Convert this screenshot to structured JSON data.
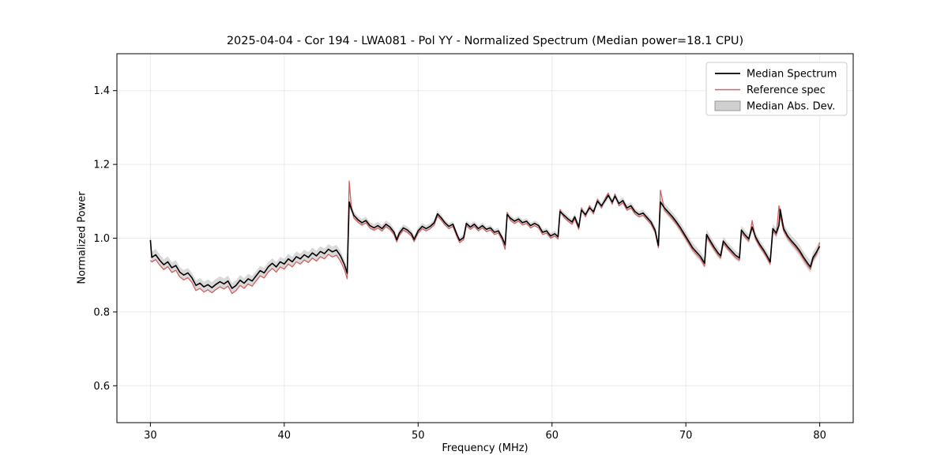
{
  "chart_data": {
    "type": "line",
    "title": "2025-04-04 - Cor 194 - LWA081 - Pol YY - Normalized Spectrum (Median power=18.1 CPU)",
    "xlabel": "Frequency (MHz)",
    "ylabel": "Normalized Power",
    "xlim": [
      27.5,
      82.5
    ],
    "ylim": [
      0.5,
      1.5
    ],
    "xticks": [
      30,
      40,
      50,
      60,
      70,
      80
    ],
    "xtick_labels": [
      "30",
      "40",
      "50",
      "60",
      "70",
      "80"
    ],
    "yticks": [
      0.6,
      0.8,
      1.0,
      1.2,
      1.4
    ],
    "ytick_labels": [
      "0.6",
      "0.8",
      "1.0",
      "1.2",
      "1.4"
    ],
    "grid": true,
    "grid_color": "rgba(0,0,0,0.08)",
    "spine_color": "#000000",
    "legend": {
      "position": "upper right"
    },
    "series": [
      {
        "name": "Median Spectrum",
        "color": "#000000",
        "width": 1.6,
        "kind": "line"
      },
      {
        "name": "Reference spec",
        "color": "#d65f5f",
        "width": 1.3,
        "kind": "line"
      },
      {
        "name": "Median Abs. Dev.",
        "color": "#aaaaaa",
        "opacity": 0.45,
        "kind": "band"
      }
    ],
    "points_format": [
      "frequency_mhz",
      "median_power",
      "reference_power"
    ],
    "points": [
      [
        30.0,
        0.995,
        0.94
      ],
      [
        30.1,
        0.948,
        0.936
      ],
      [
        30.4,
        0.955,
        0.942
      ],
      [
        30.7,
        0.94,
        0.927
      ],
      [
        31.0,
        0.928,
        0.915
      ],
      [
        31.3,
        0.936,
        0.923
      ],
      [
        31.6,
        0.92,
        0.907
      ],
      [
        31.9,
        0.926,
        0.913
      ],
      [
        32.2,
        0.908,
        0.895
      ],
      [
        32.5,
        0.9,
        0.887
      ],
      [
        32.8,
        0.906,
        0.893
      ],
      [
        33.1,
        0.893,
        0.88
      ],
      [
        33.4,
        0.872,
        0.858
      ],
      [
        33.7,
        0.878,
        0.864
      ],
      [
        34.0,
        0.868,
        0.854
      ],
      [
        34.3,
        0.874,
        0.86
      ],
      [
        34.6,
        0.866,
        0.852
      ],
      [
        34.9,
        0.875,
        0.861
      ],
      [
        35.2,
        0.882,
        0.868
      ],
      [
        35.5,
        0.876,
        0.862
      ],
      [
        35.8,
        0.884,
        0.87
      ],
      [
        36.1,
        0.864,
        0.85
      ],
      [
        36.4,
        0.872,
        0.858
      ],
      [
        36.7,
        0.886,
        0.872
      ],
      [
        37.0,
        0.878,
        0.864
      ],
      [
        37.3,
        0.89,
        0.876
      ],
      [
        37.6,
        0.884,
        0.87
      ],
      [
        37.9,
        0.898,
        0.884
      ],
      [
        38.2,
        0.912,
        0.898
      ],
      [
        38.5,
        0.906,
        0.892
      ],
      [
        38.8,
        0.922,
        0.908
      ],
      [
        39.1,
        0.932,
        0.918
      ],
      [
        39.4,
        0.922,
        0.908
      ],
      [
        39.7,
        0.936,
        0.922
      ],
      [
        40.0,
        0.93,
        0.916
      ],
      [
        40.3,
        0.944,
        0.93
      ],
      [
        40.6,
        0.936,
        0.922
      ],
      [
        40.9,
        0.95,
        0.936
      ],
      [
        41.2,
        0.944,
        0.93
      ],
      [
        41.5,
        0.955,
        0.941
      ],
      [
        41.8,
        0.948,
        0.934
      ],
      [
        42.1,
        0.96,
        0.946
      ],
      [
        42.4,
        0.952,
        0.938
      ],
      [
        42.7,
        0.964,
        0.95
      ],
      [
        43.0,
        0.958,
        0.944
      ],
      [
        43.3,
        0.97,
        0.956
      ],
      [
        43.6,
        0.963,
        0.949
      ],
      [
        43.9,
        0.968,
        0.954
      ],
      [
        44.2,
        0.952,
        0.938
      ],
      [
        44.5,
        0.928,
        0.914
      ],
      [
        44.7,
        0.905,
        0.89
      ],
      [
        44.85,
        1.098,
        1.155
      ],
      [
        45.0,
        1.08,
        1.09
      ],
      [
        45.2,
        1.062,
        1.055
      ],
      [
        45.5,
        1.05,
        1.044
      ],
      [
        45.8,
        1.042,
        1.036
      ],
      [
        46.1,
        1.048,
        1.042
      ],
      [
        46.4,
        1.034,
        1.028
      ],
      [
        46.7,
        1.028,
        1.022
      ],
      [
        47.0,
        1.034,
        1.028
      ],
      [
        47.3,
        1.026,
        1.02
      ],
      [
        47.6,
        1.038,
        1.032
      ],
      [
        47.9,
        1.03,
        1.024
      ],
      [
        48.2,
        1.016,
        1.01
      ],
      [
        48.4,
        0.996,
        0.99
      ],
      [
        48.6,
        1.014,
        1.008
      ],
      [
        48.9,
        1.028,
        1.022
      ],
      [
        49.2,
        1.022,
        1.016
      ],
      [
        49.5,
        1.012,
        1.006
      ],
      [
        49.7,
        0.997,
        0.991
      ],
      [
        50.0,
        1.02,
        1.014
      ],
      [
        50.3,
        1.032,
        1.026
      ],
      [
        50.6,
        1.026,
        1.02
      ],
      [
        50.9,
        1.032,
        1.026
      ],
      [
        51.2,
        1.042,
        1.036
      ],
      [
        51.45,
        1.066,
        1.06
      ],
      [
        51.7,
        1.056,
        1.05
      ],
      [
        52.0,
        1.042,
        1.036
      ],
      [
        52.3,
        1.032,
        1.026
      ],
      [
        52.6,
        1.038,
        1.032
      ],
      [
        52.9,
        1.01,
        1.004
      ],
      [
        53.1,
        0.994,
        0.988
      ],
      [
        53.4,
        1.002,
        0.996
      ],
      [
        53.6,
        1.04,
        1.034
      ],
      [
        53.9,
        1.03,
        1.024
      ],
      [
        54.2,
        1.038,
        1.032
      ],
      [
        54.5,
        1.026,
        1.02
      ],
      [
        54.8,
        1.034,
        1.028
      ],
      [
        55.1,
        1.024,
        1.018
      ],
      [
        55.4,
        1.028,
        1.022
      ],
      [
        55.7,
        1.016,
        1.01
      ],
      [
        56.0,
        1.02,
        1.014
      ],
      [
        56.3,
        1.0,
        0.992
      ],
      [
        56.5,
        0.982,
        0.97
      ],
      [
        56.65,
        1.064,
        1.07
      ],
      [
        56.9,
        1.054,
        1.048
      ],
      [
        57.2,
        1.046,
        1.04
      ],
      [
        57.5,
        1.052,
        1.046
      ],
      [
        57.8,
        1.042,
        1.036
      ],
      [
        58.1,
        1.046,
        1.04
      ],
      [
        58.4,
        1.034,
        1.028
      ],
      [
        58.7,
        1.04,
        1.034
      ],
      [
        59.0,
        1.034,
        1.028
      ],
      [
        59.3,
        1.016,
        1.01
      ],
      [
        59.6,
        1.02,
        1.014
      ],
      [
        59.9,
        1.006,
        1.0
      ],
      [
        60.2,
        1.012,
        1.006
      ],
      [
        60.45,
        1.004,
        0.998
      ],
      [
        60.6,
        1.072,
        1.078
      ],
      [
        60.9,
        1.062,
        1.056
      ],
      [
        61.2,
        1.052,
        1.046
      ],
      [
        61.5,
        1.044,
        1.038
      ],
      [
        61.7,
        1.058,
        1.052
      ],
      [
        62.0,
        1.03,
        1.024
      ],
      [
        62.2,
        1.076,
        1.082
      ],
      [
        62.5,
        1.064,
        1.058
      ],
      [
        62.8,
        1.082,
        1.088
      ],
      [
        63.1,
        1.072,
        1.066
      ],
      [
        63.4,
        1.1,
        1.106
      ],
      [
        63.7,
        1.088,
        1.082
      ],
      [
        64.0,
        1.104,
        1.11
      ],
      [
        64.2,
        1.116,
        1.122
      ],
      [
        64.5,
        1.098,
        1.092
      ],
      [
        64.7,
        1.114,
        1.12
      ],
      [
        65.0,
        1.094,
        1.088
      ],
      [
        65.3,
        1.102,
        1.096
      ],
      [
        65.6,
        1.082,
        1.076
      ],
      [
        65.9,
        1.088,
        1.082
      ],
      [
        66.2,
        1.072,
        1.066
      ],
      [
        66.5,
        1.064,
        1.058
      ],
      [
        66.8,
        1.068,
        1.062
      ],
      [
        67.1,
        1.056,
        1.05
      ],
      [
        67.4,
        1.044,
        1.038
      ],
      [
        67.7,
        1.022,
        1.016
      ],
      [
        67.95,
        0.98,
        0.974
      ],
      [
        68.1,
        1.098,
        1.13
      ],
      [
        68.4,
        1.082,
        1.076
      ],
      [
        68.7,
        1.07,
        1.064
      ],
      [
        69.0,
        1.058,
        1.052
      ],
      [
        69.3,
        1.044,
        1.038
      ],
      [
        69.6,
        1.028,
        1.022
      ],
      [
        69.9,
        1.01,
        1.004
      ],
      [
        70.2,
        0.992,
        0.986
      ],
      [
        70.5,
        0.974,
        0.968
      ],
      [
        70.8,
        0.962,
        0.956
      ],
      [
        71.1,
        0.95,
        0.944
      ],
      [
        71.4,
        0.932,
        0.924
      ],
      [
        71.55,
        1.01,
        1.004
      ],
      [
        71.8,
        0.994,
        0.988
      ],
      [
        72.1,
        0.976,
        0.97
      ],
      [
        72.4,
        0.96,
        0.954
      ],
      [
        72.6,
        0.952,
        0.946
      ],
      [
        72.8,
        0.992,
        0.986
      ],
      [
        73.1,
        0.978,
        0.972
      ],
      [
        73.4,
        0.966,
        0.96
      ],
      [
        73.7,
        0.954,
        0.948
      ],
      [
        74.0,
        0.946,
        0.94
      ],
      [
        74.15,
        1.022,
        1.016
      ],
      [
        74.4,
        1.01,
        1.004
      ],
      [
        74.7,
        0.998,
        0.992
      ],
      [
        74.95,
        1.03,
        1.048
      ],
      [
        75.2,
        1.004,
        0.998
      ],
      [
        75.5,
        0.984,
        0.978
      ],
      [
        75.8,
        0.968,
        0.962
      ],
      [
        76.1,
        0.95,
        0.944
      ],
      [
        76.3,
        0.936,
        0.93
      ],
      [
        76.5,
        1.026,
        1.02
      ],
      [
        76.75,
        1.014,
        1.008
      ],
      [
        76.95,
        1.034,
        1.088
      ],
      [
        77.05,
        1.078,
        1.06
      ],
      [
        77.3,
        1.026,
        1.02
      ],
      [
        77.6,
        1.006,
        1.0
      ],
      [
        77.9,
        0.992,
        0.986
      ],
      [
        78.2,
        0.98,
        0.974
      ],
      [
        78.5,
        0.966,
        0.96
      ],
      [
        78.8,
        0.948,
        0.942
      ],
      [
        79.1,
        0.932,
        0.926
      ],
      [
        79.3,
        0.922,
        0.916
      ],
      [
        79.5,
        0.948,
        0.942
      ],
      [
        79.75,
        0.962,
        0.956
      ],
      [
        80.0,
        0.978,
        0.988
      ]
    ],
    "mad_halfwidth_control": [
      [
        30,
        0.016
      ],
      [
        33,
        0.013
      ],
      [
        35,
        0.015
      ],
      [
        38,
        0.013
      ],
      [
        41,
        0.014
      ],
      [
        44,
        0.014
      ],
      [
        45.5,
        0.01
      ],
      [
        48,
        0.01
      ],
      [
        52,
        0.008
      ],
      [
        56,
        0.008
      ],
      [
        60,
        0.008
      ],
      [
        64,
        0.009
      ],
      [
        67,
        0.009
      ],
      [
        68.5,
        0.012
      ],
      [
        71,
        0.014
      ],
      [
        73,
        0.012
      ],
      [
        75,
        0.012
      ],
      [
        77,
        0.013
      ],
      [
        79,
        0.016
      ],
      [
        80,
        0.015
      ]
    ]
  }
}
